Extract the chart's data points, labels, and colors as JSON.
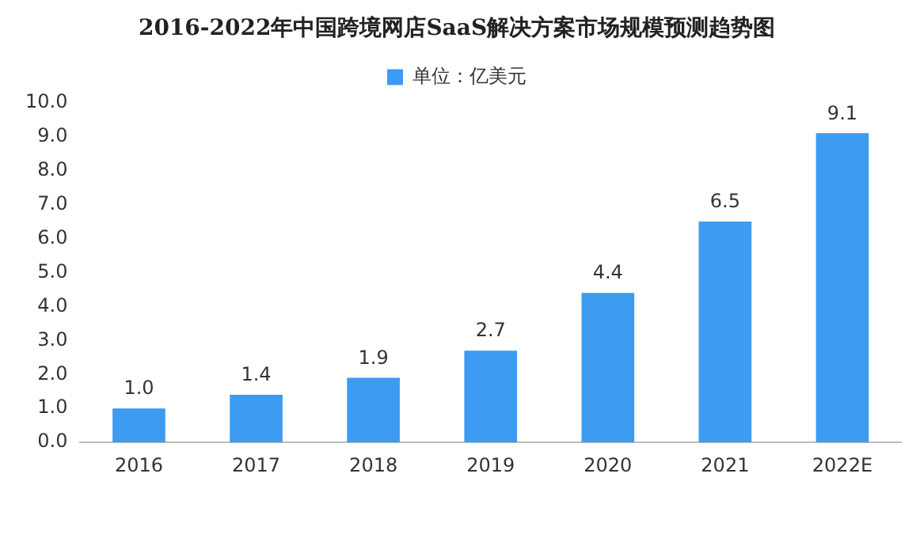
{
  "chart_data": {
    "type": "bar",
    "title": "2016-2022年中国跨境网店SaaS解决方案市场规模预测趋势图",
    "categories": [
      "2016",
      "2017",
      "2018",
      "2019",
      "2020",
      "2021",
      "2022E"
    ],
    "series": [
      {
        "name": "单位：亿美元",
        "color": "#3d9bf2",
        "values": [
          1.0,
          1.4,
          1.9,
          2.7,
          4.4,
          6.5,
          9.1
        ],
        "value_labels": [
          "1.0",
          "1.4",
          "1.9",
          "2.7",
          "4.4",
          "6.5",
          "9.1"
        ]
      }
    ],
    "ylim": [
      0,
      10
    ],
    "yticks": [
      {
        "value": 0,
        "label": "0.0"
      },
      {
        "value": 1,
        "label": "1.0"
      },
      {
        "value": 2,
        "label": "2.0"
      },
      {
        "value": 3,
        "label": "3.0"
      },
      {
        "value": 4,
        "label": "4.0"
      },
      {
        "value": 5,
        "label": "5.0"
      },
      {
        "value": 6,
        "label": "6.0"
      },
      {
        "value": 7,
        "label": "7.0"
      },
      {
        "value": 8,
        "label": "8.0"
      },
      {
        "value": 9,
        "label": "9.0"
      },
      {
        "value": 10,
        "label": "10.0"
      }
    ],
    "grid": false,
    "legend": "top"
  }
}
